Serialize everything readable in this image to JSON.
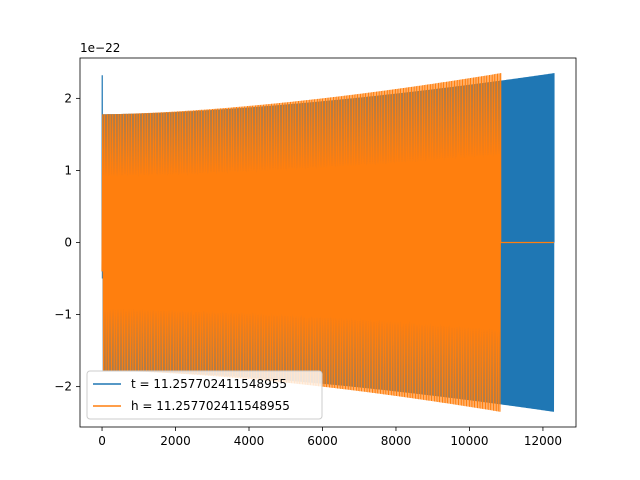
{
  "chart_data": {
    "type": "line",
    "title": "",
    "xlabel": "",
    "ylabel": "",
    "offset_text": "1e−22",
    "xlim": [
      -600,
      12900
    ],
    "ylim": [
      -2.56,
      2.56
    ],
    "xticks": [
      0,
      2000,
      4000,
      6000,
      8000,
      10000,
      12000
    ],
    "xtick_labels": [
      "0",
      "2000",
      "4000",
      "6000",
      "8000",
      "10000",
      "12000"
    ],
    "yticks": [
      -2,
      -1,
      0,
      1,
      2
    ],
    "ytick_labels": [
      "−2",
      "−1",
      "0",
      "1",
      "2"
    ],
    "grid": false,
    "legend_position": "lower-left",
    "series": [
      {
        "name": "t = 11.257702411548955",
        "color": "#1f77b4",
        "x_range": [
          0,
          12300
        ],
        "description_values": {
          "initial_spike": 2.32,
          "envelope_start": 1.78,
          "envelope_end": 2.35
        }
      },
      {
        "name": "h = 11.257702411548955",
        "color": "#ff7f0e",
        "x_range": [
          0,
          12300
        ],
        "description_values": {
          "signal_end_x": 10850,
          "envelope_start": 1.78,
          "envelope_end": 2.35,
          "tail_value": 0.0
        }
      }
    ]
  }
}
